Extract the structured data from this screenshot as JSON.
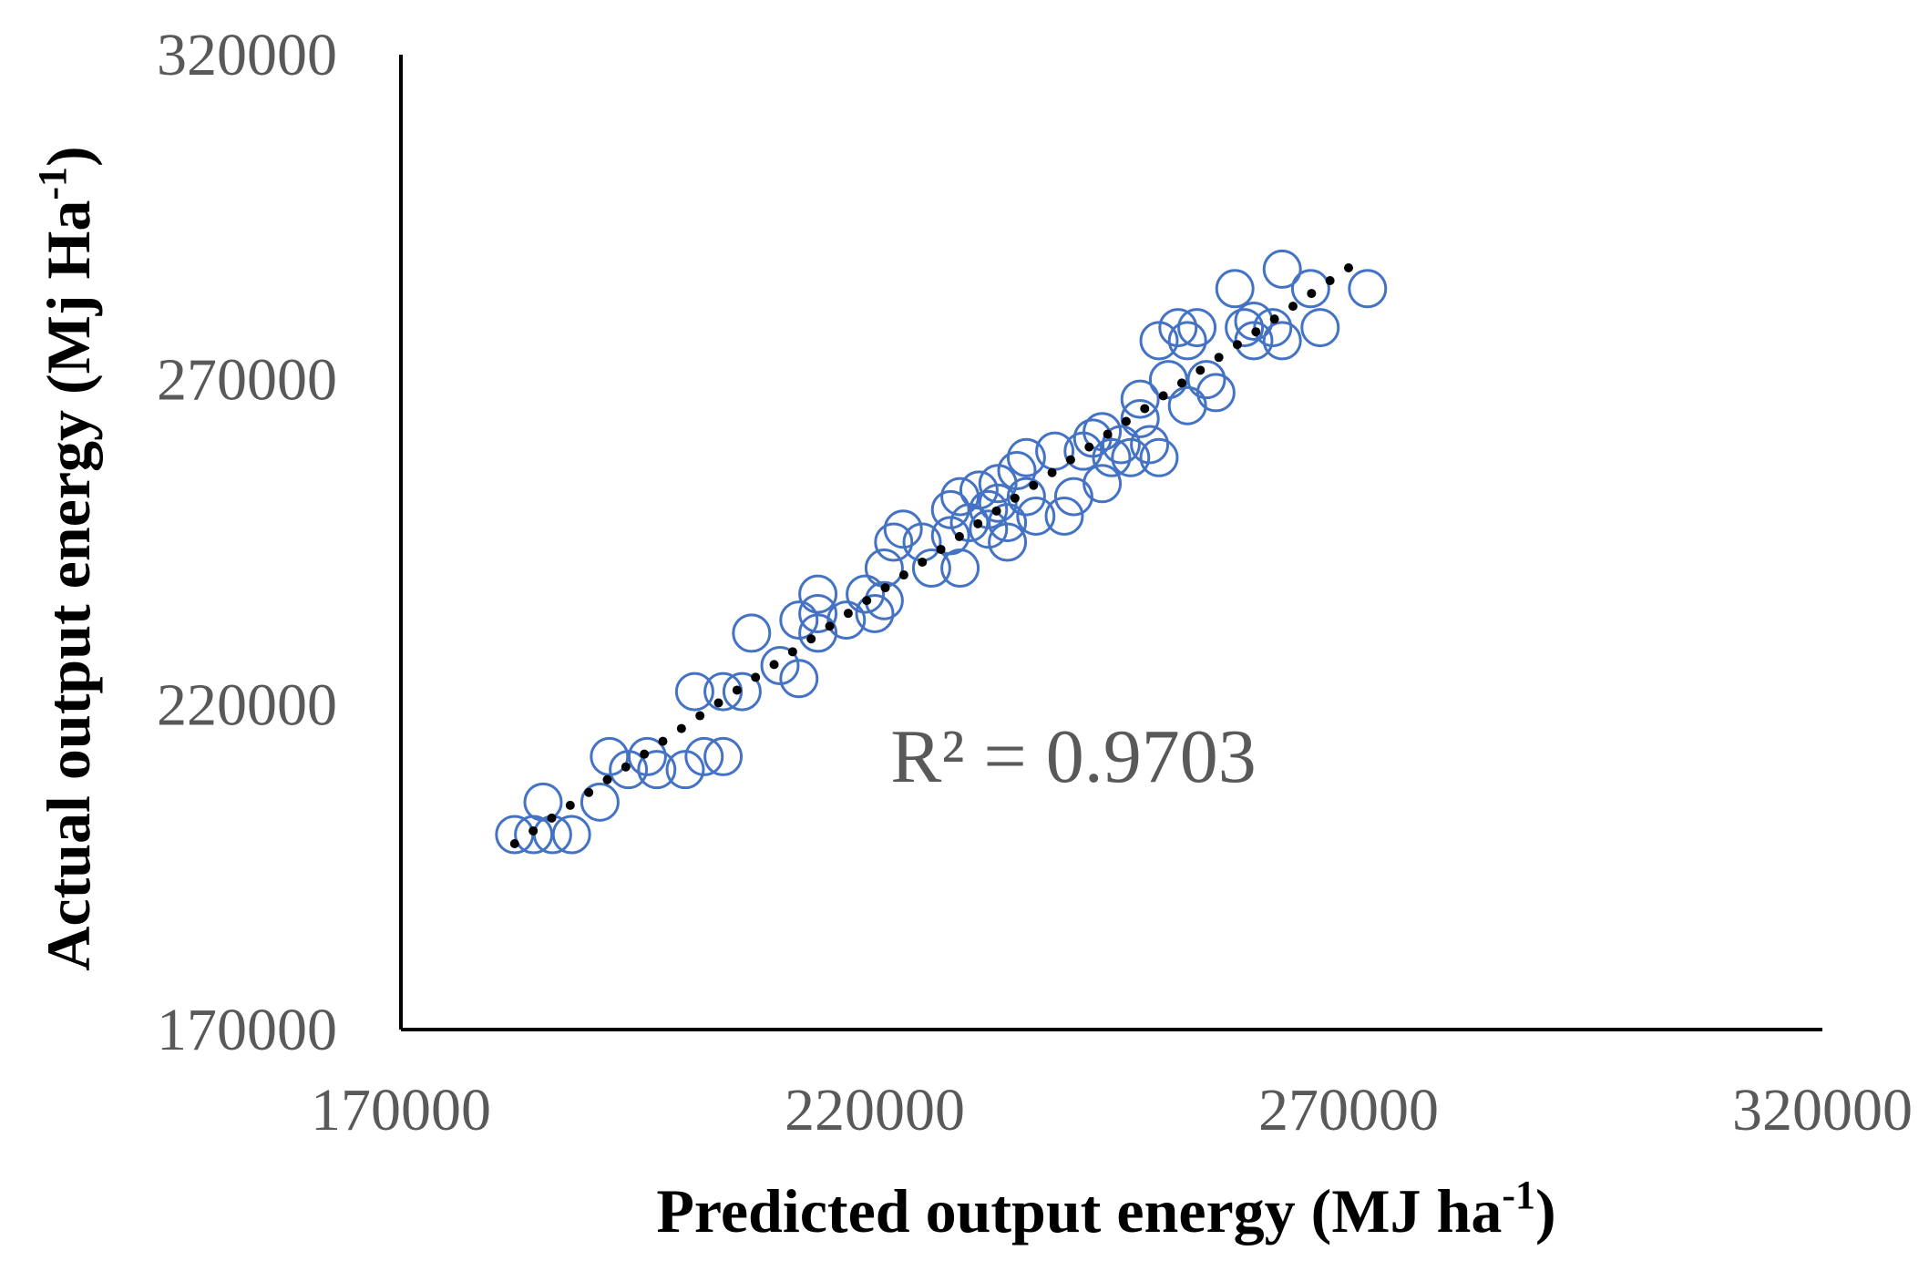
{
  "chart_data": {
    "type": "scatter",
    "xlabel": {
      "main": "Predicted output energy (MJ ha",
      "sup": "-1",
      "tail": ")"
    },
    "ylabel": {
      "main": "Actual output energy (Mj Ha",
      "sup": "-1",
      "tail": ")"
    },
    "xlim": [
      170000,
      320000
    ],
    "ylim": [
      170000,
      320000
    ],
    "xticks": [
      "170000",
      "220000",
      "270000",
      "320000"
    ],
    "yticks": [
      "170000",
      "220000",
      "270000",
      "320000"
    ],
    "annotation": "R² = 0.9703",
    "trendline": {
      "type": "linear",
      "style": "dotted",
      "x_start": 182000,
      "x_end": 270000,
      "y_start": 198600,
      "y_end": 287200
    },
    "series": [
      {
        "marker": "open-circle",
        "color": "#4472C4",
        "points": [
          [
            182000,
            200000
          ],
          [
            184000,
            200000
          ],
          [
            186000,
            200000
          ],
          [
            188000,
            200000
          ],
          [
            185000,
            205000
          ],
          [
            191000,
            205000
          ],
          [
            192000,
            212000
          ],
          [
            194000,
            210000
          ],
          [
            196000,
            212000
          ],
          [
            197000,
            210000
          ],
          [
            200000,
            210000
          ],
          [
            202000,
            212000
          ],
          [
            204000,
            212000
          ],
          [
            201000,
            222000
          ],
          [
            204000,
            222000
          ],
          [
            206000,
            222000
          ],
          [
            207000,
            231000
          ],
          [
            210000,
            226000
          ],
          [
            212000,
            224000
          ],
          [
            212000,
            233000
          ],
          [
            214000,
            234000
          ],
          [
            214000,
            231000
          ],
          [
            214000,
            237000
          ],
          [
            217000,
            233000
          ],
          [
            219000,
            237000
          ],
          [
            220000,
            234000
          ],
          [
            221000,
            236000
          ],
          [
            221000,
            241000
          ],
          [
            222000,
            245000
          ],
          [
            223000,
            247000
          ],
          [
            225000,
            245000
          ],
          [
            226000,
            241000
          ],
          [
            228000,
            246000
          ],
          [
            228000,
            250000
          ],
          [
            229000,
            252000
          ],
          [
            229000,
            241000
          ],
          [
            230000,
            248000
          ],
          [
            231000,
            253000
          ],
          [
            232000,
            250000
          ],
          [
            232000,
            247000
          ],
          [
            233000,
            251000
          ],
          [
            233000,
            254000
          ],
          [
            234000,
            248000
          ],
          [
            234000,
            245000
          ],
          [
            235000,
            256000
          ],
          [
            236000,
            252000
          ],
          [
            236000,
            258000
          ],
          [
            237000,
            249000
          ],
          [
            239000,
            259000
          ],
          [
            240000,
            249000
          ],
          [
            241000,
            252000
          ],
          [
            242000,
            259000
          ],
          [
            243000,
            261000
          ],
          [
            244000,
            254000
          ],
          [
            245000,
            258000
          ],
          [
            246000,
            260000
          ],
          [
            247000,
            258000
          ],
          [
            248000,
            264000
          ],
          [
            248000,
            267000
          ],
          [
            249000,
            260000
          ],
          [
            250000,
            258000
          ],
          [
            250000,
            276000
          ],
          [
            251000,
            270000
          ],
          [
            252000,
            278000
          ],
          [
            253000,
            266000
          ],
          [
            253000,
            276000
          ],
          [
            254000,
            278000
          ],
          [
            255000,
            270000
          ],
          [
            256000,
            268000
          ],
          [
            258000,
            284000
          ],
          [
            259000,
            278000
          ],
          [
            260000,
            276000
          ],
          [
            262000,
            278000
          ],
          [
            263000,
            276000
          ],
          [
            263000,
            287000
          ],
          [
            266000,
            284000
          ],
          [
            267000,
            278000
          ],
          [
            272000,
            284000
          ],
          [
            260000,
            279000
          ],
          [
            244000,
            262000
          ]
        ]
      }
    ]
  }
}
